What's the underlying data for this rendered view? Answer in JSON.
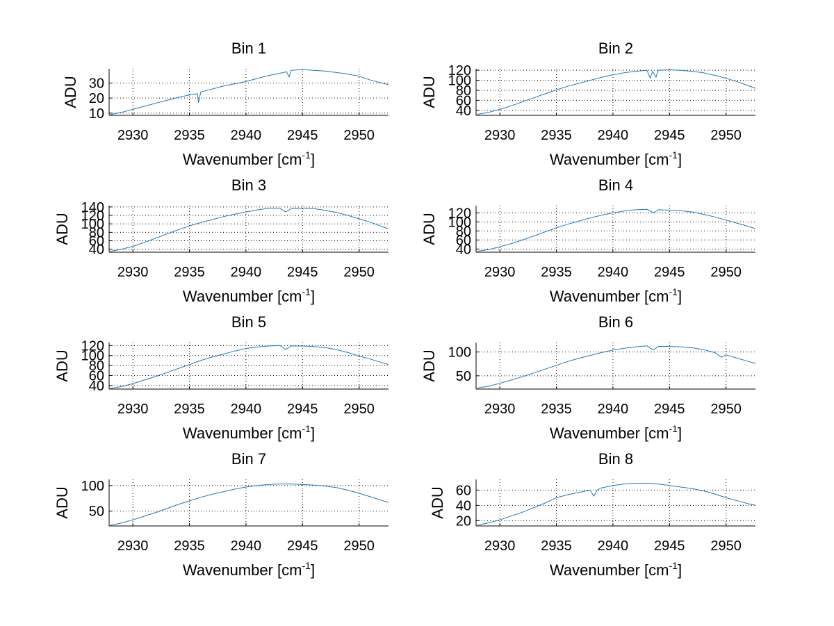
{
  "chart_data": [
    {
      "type": "line",
      "title": "Bin 1",
      "xlabel": "Wavenumber [cm",
      "xlabel_sup": "-1",
      "xlabel_end": "]",
      "ylabel": "ADU",
      "xlim": [
        2927.9,
        2952.6
      ],
      "ylim": [
        8.5,
        39.5
      ],
      "xticks": [
        2930,
        2935,
        2940,
        2945,
        2950
      ],
      "xtick_labels": [
        "2930",
        "2935",
        "2940",
        "2945",
        "2950"
      ],
      "yticks": [
        10,
        20,
        30
      ],
      "ytick_labels": [
        "10",
        "20",
        "30"
      ],
      "grid": true,
      "series": [
        {
          "name": "Bin 1",
          "color": "#1f77b4",
          "x": [
            2928,
            2929,
            2930,
            2931,
            2932,
            2933,
            2934,
            2935,
            2935.7,
            2935.8,
            2936,
            2937,
            2938,
            2939,
            2940,
            2941,
            2942,
            2943,
            2943.6,
            2943.8,
            2944,
            2945,
            2946,
            2947,
            2948,
            2949,
            2950,
            2951,
            2952,
            2952.6
          ],
          "y": [
            9,
            10.5,
            12.5,
            14.5,
            16.5,
            18.5,
            20.5,
            22,
            23,
            17,
            24,
            26,
            28,
            29.5,
            31,
            33,
            35,
            36.5,
            37.5,
            34,
            38.5,
            39,
            38.5,
            38,
            37,
            36,
            34.5,
            32,
            30,
            29
          ]
        }
      ]
    },
    {
      "type": "line",
      "title": "Bin 2",
      "xlabel": "Wavenumber [cm",
      "xlabel_sup": "-1",
      "xlabel_end": "]",
      "ylabel": "ADU",
      "xlim": [
        2927.9,
        2952.6
      ],
      "ylim": [
        30,
        123
      ],
      "xticks": [
        2930,
        2935,
        2940,
        2945,
        2950
      ],
      "xtick_labels": [
        "2930",
        "2935",
        "2940",
        "2945",
        "2950"
      ],
      "yticks": [
        40,
        60,
        80,
        100,
        120
      ],
      "ytick_labels": [
        "40",
        "60",
        "80",
        "100",
        "120"
      ],
      "grid": true,
      "series": [
        {
          "name": "Bin 2",
          "color": "#1f77b4",
          "x": [
            2928,
            2929,
            2930,
            2931,
            2932,
            2933,
            2934,
            2935,
            2936,
            2937,
            2938,
            2939,
            2940,
            2941,
            2942,
            2943,
            2943.3,
            2943.5,
            2943.8,
            2944,
            2945,
            2946,
            2947,
            2948,
            2949,
            2950,
            2951,
            2952,
            2952.6
          ],
          "y": [
            32,
            36,
            42,
            49,
            57,
            65,
            73,
            81,
            88,
            94,
            100,
            106,
            111,
            115,
            118,
            120,
            104,
            118,
            106,
            120,
            121,
            120,
            118,
            115,
            110,
            104,
            97,
            89,
            84
          ]
        }
      ]
    },
    {
      "type": "line",
      "title": "Bin 3",
      "xlabel": "Wavenumber [cm",
      "xlabel_sup": "-1",
      "xlabel_end": "]",
      "ylabel": "ADU",
      "xlim": [
        2927.9,
        2952.6
      ],
      "ylim": [
        33,
        143
      ],
      "xticks": [
        2930,
        2935,
        2940,
        2945,
        2950
      ],
      "xtick_labels": [
        "2930",
        "2935",
        "2940",
        "2945",
        "2950"
      ],
      "yticks": [
        40,
        60,
        80,
        100,
        120,
        140
      ],
      "ytick_labels": [
        "40",
        "60",
        "80",
        "100",
        "120",
        "140"
      ],
      "grid": true,
      "series": [
        {
          "name": "Bin 3",
          "color": "#1f77b4",
          "x": [
            2928,
            2929,
            2930,
            2931,
            2932,
            2933,
            2934,
            2935,
            2936,
            2937,
            2938,
            2939,
            2940,
            2941,
            2942,
            2943,
            2943.5,
            2944,
            2945,
            2946,
            2947,
            2948,
            2949,
            2950,
            2951,
            2952,
            2952.6
          ],
          "y": [
            35,
            40,
            47,
            56,
            66,
            76,
            86,
            95,
            103,
            110,
            117,
            123,
            128,
            133,
            137,
            137,
            128,
            136,
            137,
            136,
            132,
            127,
            120,
            112,
            104,
            94,
            88
          ]
        }
      ]
    },
    {
      "type": "line",
      "title": "Bin 4",
      "xlabel": "Wavenumber [cm",
      "xlabel_sup": "-1",
      "xlabel_end": "]",
      "ylabel": "ADU",
      "xlim": [
        2927.9,
        2952.6
      ],
      "ylim": [
        33,
        136
      ],
      "xticks": [
        2930,
        2935,
        2940,
        2945,
        2950
      ],
      "xtick_labels": [
        "2930",
        "2935",
        "2940",
        "2945",
        "2950"
      ],
      "yticks": [
        40,
        60,
        80,
        100,
        120
      ],
      "ytick_labels": [
        "40",
        "60",
        "80",
        "100",
        "120"
      ],
      "grid": true,
      "series": [
        {
          "name": "Bin 4",
          "color": "#1f77b4",
          "x": [
            2928,
            2929,
            2930,
            2931,
            2932,
            2933,
            2934,
            2935,
            2936,
            2937,
            2938,
            2939,
            2940,
            2941,
            2942,
            2943,
            2943.6,
            2944,
            2945,
            2946,
            2947,
            2948,
            2949,
            2950,
            2951,
            2952,
            2952.6
          ],
          "y": [
            35,
            39,
            45,
            52,
            60,
            69,
            78,
            87,
            95,
            102,
            109,
            115,
            120,
            124,
            127,
            128,
            120,
            127,
            126,
            125,
            122,
            117,
            111,
            104,
            97,
            90,
            85
          ]
        }
      ]
    },
    {
      "type": "line",
      "title": "Bin 5",
      "xlabel": "Wavenumber [cm",
      "xlabel_sup": "-1",
      "xlabel_end": "]",
      "ylabel": "ADU",
      "xlim": [
        2927.9,
        2952.6
      ],
      "ylim": [
        33,
        126
      ],
      "xticks": [
        2930,
        2935,
        2940,
        2945,
        2950
      ],
      "xtick_labels": [
        "2930",
        "2935",
        "2940",
        "2945",
        "2950"
      ],
      "yticks": [
        40,
        60,
        80,
        100,
        120
      ],
      "ytick_labels": [
        "40",
        "60",
        "80",
        "100",
        "120"
      ],
      "grid": true,
      "series": [
        {
          "name": "Bin 5",
          "color": "#1f77b4",
          "x": [
            2928,
            2929,
            2930,
            2931,
            2932,
            2933,
            2934,
            2935,
            2936,
            2937,
            2938,
            2939,
            2940,
            2941,
            2942,
            2943,
            2943.5,
            2944,
            2945,
            2946,
            2947,
            2948,
            2949,
            2950,
            2951,
            2952,
            2952.6
          ],
          "y": [
            34,
            38,
            44,
            51,
            58,
            66,
            74,
            82,
            90,
            97,
            103,
            109,
            114,
            117,
            119,
            120,
            112,
            119,
            119,
            118,
            116,
            112,
            106,
            99,
            93,
            86,
            82
          ]
        }
      ]
    },
    {
      "type": "line",
      "title": "Bin 6",
      "xlabel": "Wavenumber [cm",
      "xlabel_sup": "-1",
      "xlabel_end": "]",
      "ylabel": "ADU",
      "xlim": [
        2927.9,
        2952.6
      ],
      "ylim": [
        22,
        120
      ],
      "xticks": [
        2930,
        2935,
        2940,
        2945,
        2950
      ],
      "xtick_labels": [
        "2930",
        "2935",
        "2940",
        "2945",
        "2950"
      ],
      "yticks": [
        50,
        100
      ],
      "ytick_labels": [
        "50",
        "100"
      ],
      "grid": true,
      "series": [
        {
          "name": "Bin 6",
          "color": "#1f77b4",
          "x": [
            2928,
            2929,
            2930,
            2931,
            2932,
            2933,
            2934,
            2935,
            2936,
            2937,
            2938,
            2939,
            2940,
            2941,
            2942,
            2943,
            2943.6,
            2944,
            2945,
            2946,
            2947,
            2948,
            2949,
            2949.6,
            2950,
            2951,
            2952,
            2952.6
          ],
          "y": [
            24,
            28,
            34,
            41,
            48,
            56,
            64,
            72,
            80,
            87,
            93,
            99,
            104,
            108,
            111,
            113,
            104,
            112,
            112,
            111,
            109,
            105,
            99,
            89,
            94,
            87,
            80,
            76
          ]
        }
      ]
    },
    {
      "type": "line",
      "title": "Bin 7",
      "xlabel": "Wavenumber [cm",
      "xlabel_sup": "-1",
      "xlabel_end": "]",
      "ylabel": "ADU",
      "xlim": [
        2927.9,
        2952.6
      ],
      "ylim": [
        21,
        112
      ],
      "xticks": [
        2930,
        2935,
        2940,
        2945,
        2950
      ],
      "xtick_labels": [
        "2930",
        "2935",
        "2940",
        "2945",
        "2950"
      ],
      "yticks": [
        50,
        100
      ],
      "ytick_labels": [
        "50",
        "100"
      ],
      "grid": true,
      "series": [
        {
          "name": "Bin 7",
          "color": "#1f77b4",
          "x": [
            2928,
            2929,
            2930,
            2931,
            2932,
            2933,
            2934,
            2935,
            2936,
            2937,
            2938,
            2939,
            2940,
            2941,
            2942,
            2943,
            2944,
            2945,
            2946,
            2947,
            2948,
            2949,
            2950,
            2951,
            2952,
            2952.6
          ],
          "y": [
            22,
            27,
            33,
            40,
            47,
            55,
            63,
            70,
            77,
            83,
            88,
            93,
            97,
            100,
            102,
            103,
            103,
            102,
            101,
            99,
            96,
            91,
            85,
            78,
            71,
            67
          ]
        }
      ]
    },
    {
      "type": "line",
      "title": "Bin 8",
      "xlabel": "Wavenumber [cm",
      "xlabel_sup": "-1",
      "xlabel_end": "]",
      "ylabel": "ADU",
      "xlim": [
        2927.9,
        2952.6
      ],
      "ylim": [
        13,
        74
      ],
      "xticks": [
        2930,
        2935,
        2940,
        2945,
        2950
      ],
      "xtick_labels": [
        "2930",
        "2935",
        "2940",
        "2945",
        "2950"
      ],
      "yticks": [
        20,
        40,
        60
      ],
      "ytick_labels": [
        "20",
        "40",
        "60"
      ],
      "grid": true,
      "series": [
        {
          "name": "Bin 8",
          "color": "#1f77b4",
          "x": [
            2928,
            2929,
            2930,
            2931,
            2932,
            2933,
            2934,
            2935,
            2936,
            2937,
            2938,
            2938.3,
            2938.6,
            2939,
            2940,
            2941,
            2942,
            2943,
            2944,
            2945,
            2946,
            2947,
            2948,
            2949,
            2950,
            2951,
            2952,
            2952.6
          ],
          "y": [
            14,
            17,
            21,
            26,
            31,
            37,
            43,
            50,
            54,
            57,
            60,
            52,
            60,
            63,
            66,
            68,
            69,
            69,
            68,
            66,
            64,
            62,
            59,
            55,
            50,
            46,
            42,
            40
          ]
        }
      ]
    }
  ]
}
